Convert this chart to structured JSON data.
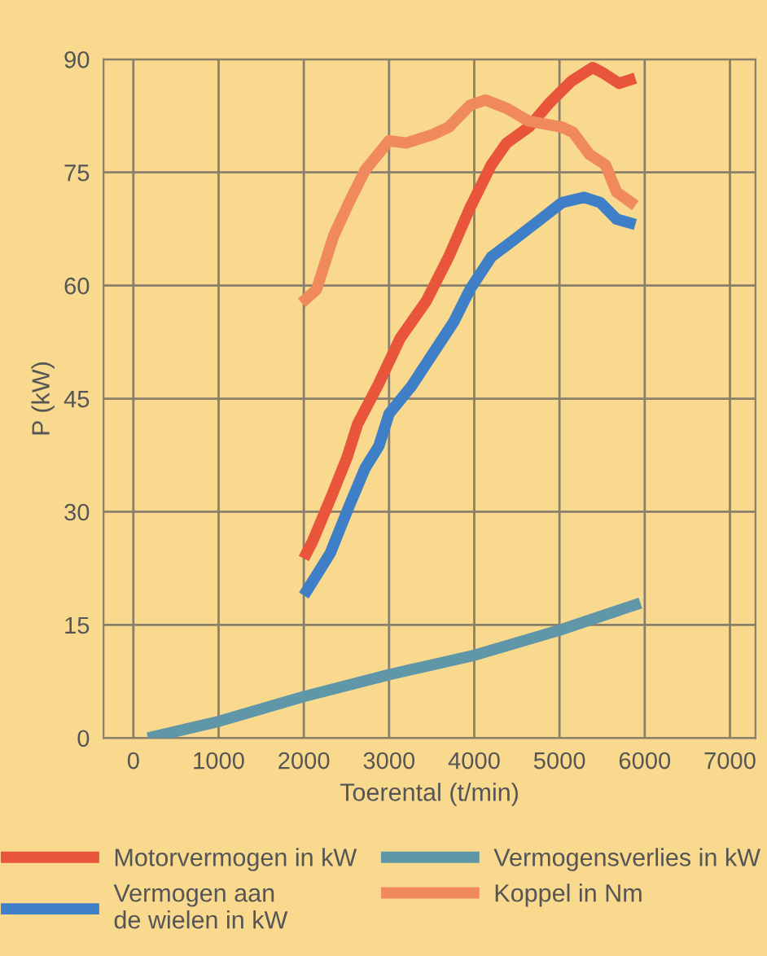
{
  "chart_data": {
    "type": "line",
    "xlabel": "Toerental (t/min)",
    "ylabel": "P (kW)",
    "xlim": [
      -350,
      7300
    ],
    "xticks": [
      0,
      1000,
      2000,
      3000,
      4000,
      5000,
      6000,
      7000
    ],
    "ylim": [
      0,
      90
    ],
    "yticks": [
      0,
      15,
      30,
      45,
      60,
      75,
      90
    ],
    "grid": true,
    "legend": "bottom",
    "marker": "none",
    "line_style": "solid",
    "series": [
      {
        "name": "Motorvermogen in kW",
        "color": "#e8553a",
        "x": [
          2000,
          2100,
          2330,
          2510,
          2630,
          2880,
          3130,
          3440,
          3700,
          3950,
          4200,
          4380,
          4640,
          4890,
          5140,
          5390,
          5510,
          5700,
          5890
        ],
        "values": [
          23.8,
          26,
          32.2,
          37.3,
          41.6,
          47,
          53,
          58,
          63.8,
          70.3,
          76,
          78.9,
          81,
          84.3,
          87.1,
          88.9,
          88.2,
          86.8,
          87.5
        ]
      },
      {
        "name": "Vermogen aan\nde wielen in kW",
        "color": "#3f7fc8",
        "x": [
          2000,
          2150,
          2310,
          2530,
          2720,
          2880,
          3000,
          3260,
          3510,
          3760,
          3950,
          4200,
          4460,
          4780,
          5030,
          5290,
          5480,
          5670,
          5890
        ],
        "values": [
          18.9,
          21.6,
          24.5,
          30.7,
          35.8,
          38.7,
          43,
          46.6,
          50.9,
          55.2,
          59.5,
          63.8,
          66,
          68.8,
          71,
          71.7,
          71,
          68.8,
          68.1
        ]
      },
      {
        "name": "Vermogensverlies in kW",
        "color": "#5f97a8",
        "x": [
          170,
          1000,
          2000,
          3000,
          4010,
          5000,
          5950
        ],
        "values": [
          0,
          2.2,
          5.5,
          8.4,
          11,
          14.3,
          17.9
        ]
      },
      {
        "name": "Koppel in Nm",
        "color": "#f08a5d",
        "x": [
          1975,
          2150,
          2350,
          2530,
          2720,
          3000,
          3200,
          3510,
          3700,
          3950,
          4130,
          4380,
          4640,
          5030,
          5160,
          5350,
          5540,
          5670,
          5890
        ],
        "values": [
          57.7,
          59.5,
          66.6,
          71,
          75.3,
          79.2,
          78.9,
          80,
          81,
          83.9,
          84.6,
          83.5,
          81.8,
          81,
          80.3,
          77.4,
          76,
          72.4,
          70.6
        ]
      }
    ]
  }
}
